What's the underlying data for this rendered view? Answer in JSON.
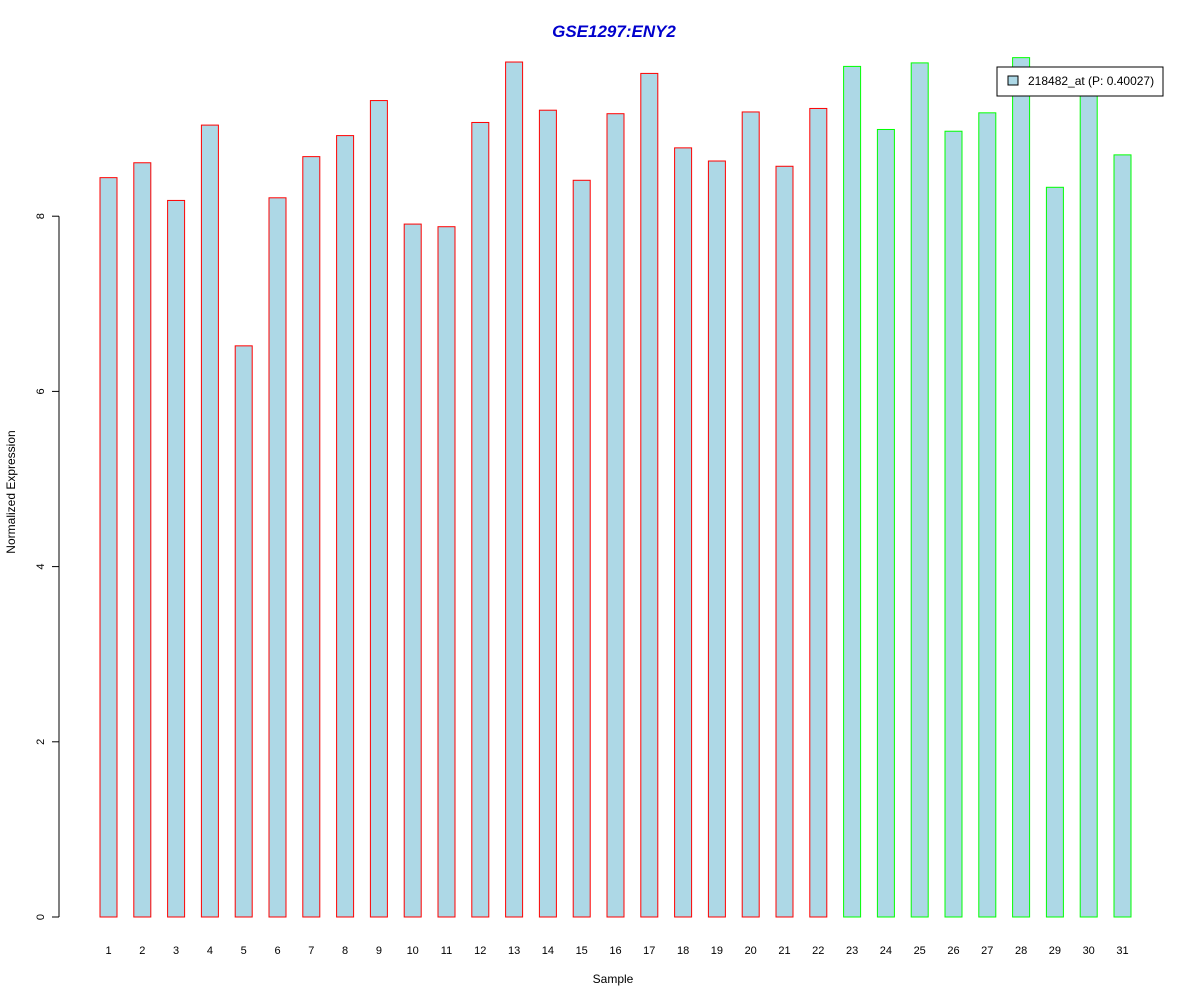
{
  "chart_data": {
    "type": "bar",
    "title": "GSE1297:ENY2",
    "xlabel": "Sample",
    "ylabel": "Normalized Expression",
    "categories": [
      "1",
      "2",
      "3",
      "4",
      "5",
      "6",
      "7",
      "8",
      "9",
      "10",
      "11",
      "12",
      "13",
      "14",
      "15",
      "16",
      "17",
      "18",
      "19",
      "20",
      "21",
      "22",
      "23",
      "24",
      "25",
      "26",
      "27",
      "28",
      "29",
      "30",
      "31"
    ],
    "values": [
      8.44,
      8.61,
      8.18,
      9.04,
      6.52,
      8.21,
      8.68,
      8.92,
      9.32,
      7.91,
      7.88,
      9.07,
      9.76,
      9.21,
      8.41,
      9.17,
      9.63,
      8.78,
      8.63,
      9.19,
      8.57,
      9.23,
      9.71,
      8.99,
      9.75,
      8.97,
      9.18,
      9.81,
      8.33,
      9.48,
      8.7
    ],
    "groups": [
      "red",
      "red",
      "red",
      "red",
      "red",
      "red",
      "red",
      "red",
      "red",
      "red",
      "red",
      "red",
      "red",
      "red",
      "red",
      "red",
      "red",
      "red",
      "red",
      "red",
      "red",
      "red",
      "green",
      "green",
      "green",
      "green",
      "green",
      "green",
      "green",
      "green",
      "green"
    ],
    "yticks": [
      "0",
      "2",
      "4",
      "6",
      "8"
    ],
    "ylim": [
      0,
      9.81
    ],
    "grid": false,
    "legend": {
      "position": "top-right",
      "entries": [
        {
          "label": "218482_at (P: 0.40027)",
          "color": "#add8e6"
        }
      ]
    },
    "colors": {
      "bar_fill": "#add8e6",
      "group_red_border": "#ff0000",
      "group_green_border": "#00ff00",
      "title": "#0000cc"
    }
  }
}
